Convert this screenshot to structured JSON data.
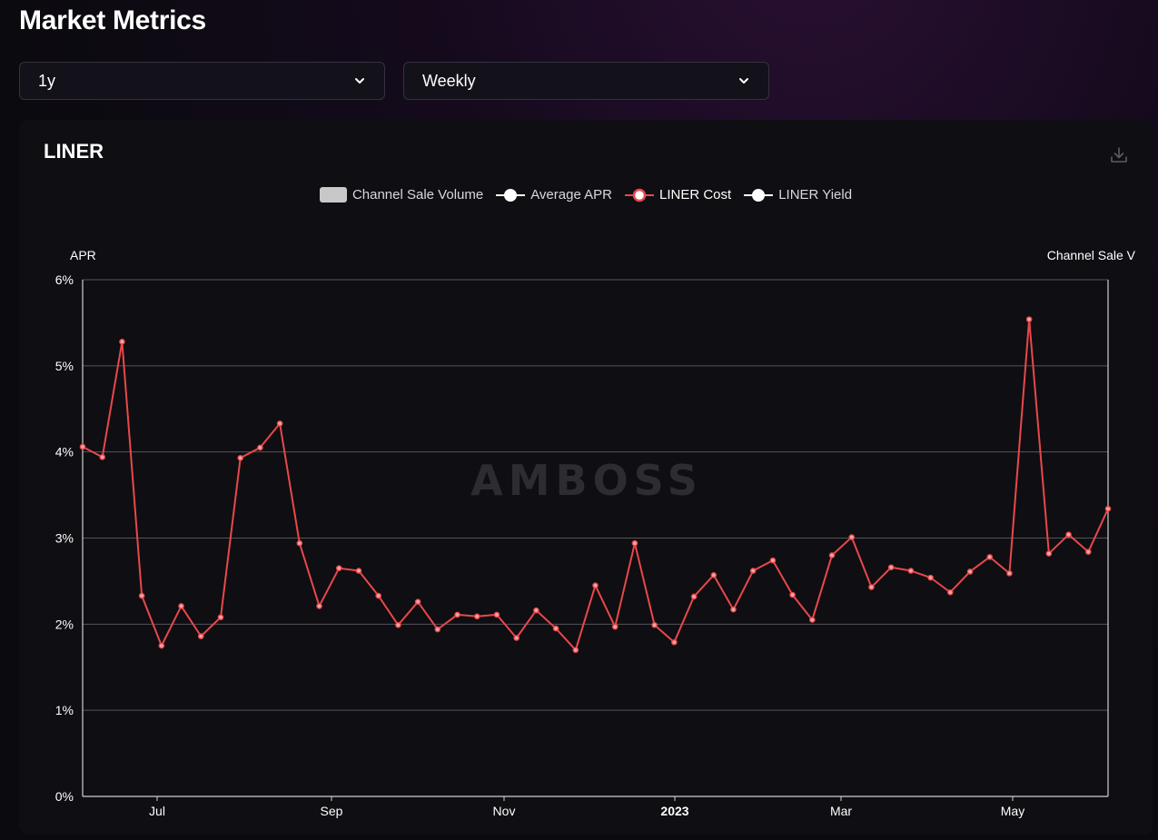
{
  "page": {
    "title": "Market Metrics"
  },
  "filters": {
    "range": {
      "value": "1y"
    },
    "interval": {
      "value": "Weekly"
    }
  },
  "card": {
    "title": "LINER",
    "download_icon": "download-icon"
  },
  "legend": [
    {
      "label": "Channel Sale Volume",
      "kind": "box",
      "color": "#c8c8c8"
    },
    {
      "label": "Average APR",
      "kind": "line",
      "color": "#ffffff"
    },
    {
      "label": "LINER Cost",
      "kind": "line",
      "color": "#e8484b"
    },
    {
      "label": "LINER Yield",
      "kind": "line",
      "color": "#ffffff"
    }
  ],
  "watermark": "AMBOSS",
  "chart_data": {
    "type": "line",
    "title": "LINER",
    "ylabel": "APR",
    "y2label": "Channel Sale V",
    "ylim": [
      0,
      6
    ],
    "y_ticks": [
      "0%",
      "1%",
      "2%",
      "3%",
      "4%",
      "5%",
      "6%"
    ],
    "x_ticks": [
      {
        "label": "Jul",
        "bold": false
      },
      {
        "label": "Sep",
        "bold": false
      },
      {
        "label": "Nov",
        "bold": false
      },
      {
        "label": "2023",
        "bold": true
      },
      {
        "label": "Mar",
        "bold": false
      },
      {
        "label": "May",
        "bold": false
      }
    ],
    "grid": true,
    "legend_position": "top",
    "series": [
      {
        "name": "LINER Cost",
        "color": "#e8484b",
        "values": [
          4.06,
          3.94,
          5.28,
          2.33,
          1.75,
          2.21,
          1.86,
          2.08,
          3.93,
          4.05,
          4.33,
          2.94,
          2.21,
          2.65,
          2.62,
          2.33,
          1.99,
          2.26,
          1.94,
          2.11,
          2.09,
          2.11,
          1.84,
          2.16,
          1.95,
          1.7,
          2.45,
          1.97,
          2.94,
          1.99,
          1.79,
          2.32,
          2.57,
          2.17,
          2.62,
          2.74,
          2.34,
          2.05,
          2.8,
          3.01,
          2.43,
          2.66,
          2.62,
          2.54,
          2.37,
          2.61,
          2.78,
          2.59,
          5.54,
          2.82,
          3.04,
          2.84,
          3.34
        ]
      }
    ]
  }
}
